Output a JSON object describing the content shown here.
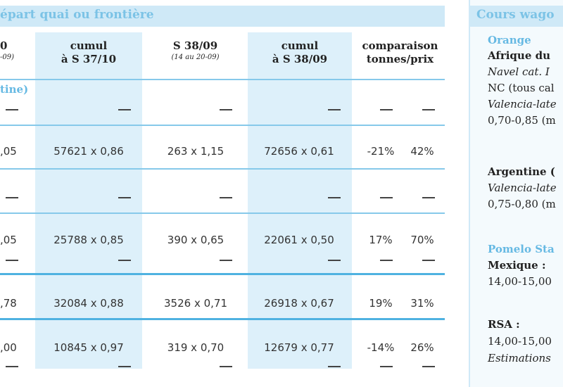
{
  "table": {
    "title": "épart quai ou frontière",
    "headers": {
      "col0": "0",
      "col0_sub": "-09)",
      "cumul1": [
        "cumul",
        "à S 37/10"
      ],
      "week": "S 38/09",
      "week_sub": "(14 au 20-09)",
      "cumul2": [
        "cumul",
        "à S 38/09"
      ],
      "comp": [
        "comparaison",
        "tonnes/prix"
      ]
    },
    "origin_label": "tine)",
    "rows": [
      {
        "c0": "",
        "c1": "",
        "c2": "",
        "c3": "",
        "t": "",
        "p": ""
      },
      {
        "c0": ",05",
        "c1": "57621 x 0,86",
        "c2": "263 x 1,15",
        "c3": "72656 x 0,61",
        "t": "-21%",
        "p": "42%"
      },
      {
        "c0": "",
        "c1": "",
        "c2": "",
        "c3": "",
        "t": "",
        "p": ""
      },
      {
        "c0": ",05",
        "c1": "25788 x 0,85",
        "c2": "390 x 0,65",
        "c3": "22061 x 0,50",
        "t": "17%",
        "p": "70%"
      },
      {
        "c0": ",78",
        "c1": "32084 x 0,88",
        "c2": "3526 x 0,71",
        "c3": "26918 x 0,67",
        "t": "19%",
        "p": "31%"
      },
      {
        "c0": ",00",
        "c1": "10845 x 0,97",
        "c2": "319 x 0,70",
        "c3": "12679 x 0,77",
        "t": "-14%",
        "p": "26%"
      }
    ]
  },
  "panel": {
    "title": "Cours wago",
    "lines": [
      "Orange",
      "Afrique du",
      "Navel cat. I",
      "NC (tous cal",
      "Valencia-late",
      "0,70-0,85 (m",
      "Argentine (",
      "Valencia-late",
      "0,75-0,80 (m",
      "Pomelo Sta",
      "Mexique :",
      "14,00-15,00",
      "RSA :",
      "14,00-15,00",
      "Estimations"
    ]
  },
  "colors": {
    "accent": "#66b9e3",
    "band": "#ddf0fa",
    "titlebar": "#cfe9f7"
  }
}
